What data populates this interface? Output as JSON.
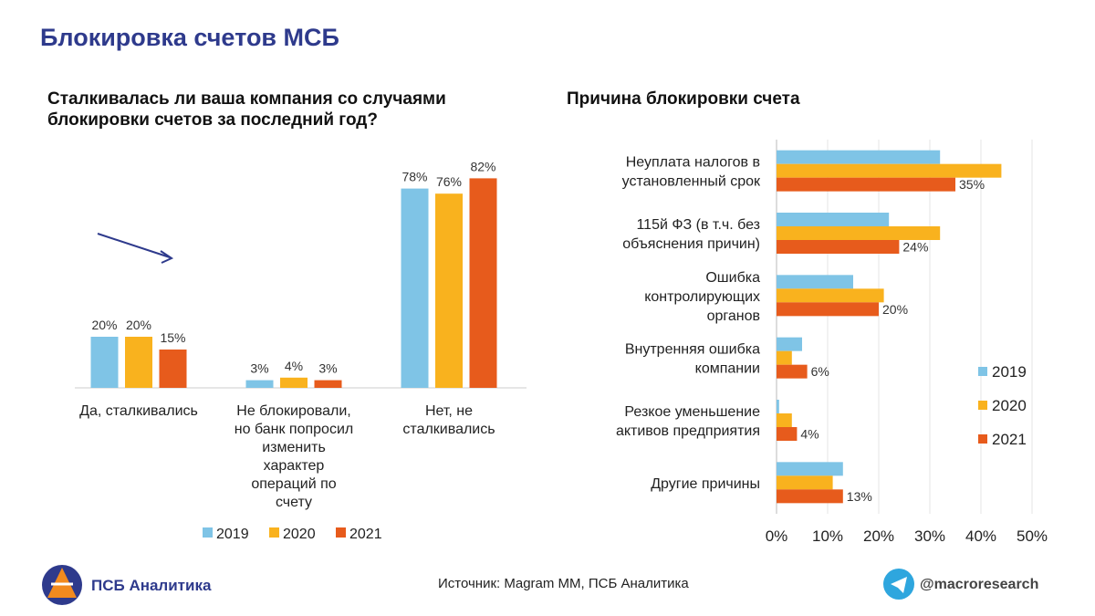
{
  "page_title": "Блокировка счетов МСБ",
  "chart_data": [
    {
      "type": "bar",
      "title": "Сталкивалась ли ваша компания со случаями\nблокировки счетов за последний год?",
      "categories": [
        "Да, сталкивались",
        "Не блокировали,\nно банк попросил\nизменить\nхарактер\nопераций по\nсчету",
        "Нет, не\nсталкивались"
      ],
      "series": [
        {
          "name": "2019",
          "color": "#7fc4e6",
          "values": [
            20,
            3,
            78
          ],
          "value_labels": [
            "20%",
            "3%",
            "78%"
          ]
        },
        {
          "name": "2020",
          "color": "#f9b21e",
          "values": [
            20,
            4,
            76
          ],
          "value_labels": [
            "20%",
            "4%",
            "76%"
          ]
        },
        {
          "name": "2021",
          "color": "#e75b1c",
          "values": [
            15,
            3,
            82
          ],
          "value_labels": [
            "15%",
            "3%",
            "82%"
          ]
        }
      ],
      "ylim": [
        0,
        90
      ],
      "legend": "bottom"
    },
    {
      "type": "barh",
      "title": "Причина блокировки счета",
      "categories": [
        "Неуплата налогов в\nустановленный срок",
        "115й ФЗ (в т.ч. без\nобъяснения причин)",
        "Ошибка\nконтролирующих\nорганов",
        "Внутренняя ошибка\nкомпании",
        "Резкое уменьшение\nактивов предприятия",
        "Другие причины"
      ],
      "series": [
        {
          "name": "2019",
          "color": "#7fc4e6",
          "values": [
            32,
            22,
            15,
            5,
            0.5,
            13
          ]
        },
        {
          "name": "2020",
          "color": "#f9b21e",
          "values": [
            44,
            32,
            21,
            3,
            3,
            11
          ]
        },
        {
          "name": "2021",
          "color": "#e75b1c",
          "values": [
            35,
            24,
            20,
            6,
            4,
            13
          ],
          "value_labels": [
            "35%",
            "24%",
            "20%",
            "6%",
            "4%",
            "13%"
          ]
        }
      ],
      "xlim": [
        0,
        50
      ],
      "xticks": [
        {
          "value": 0,
          "label": "0%"
        },
        {
          "value": 10,
          "label": "10%"
        },
        {
          "value": 20,
          "label": "20%"
        },
        {
          "value": 30,
          "label": "30%"
        },
        {
          "value": 40,
          "label": "40%"
        },
        {
          "value": 50,
          "label": "50%"
        }
      ],
      "grid": true,
      "legend": "right"
    }
  ],
  "footer": {
    "brand": "ПСБ Аналитика",
    "source": "Источник: Magram MM, ПСБ Аналитика",
    "channel": "@macroresearch"
  }
}
